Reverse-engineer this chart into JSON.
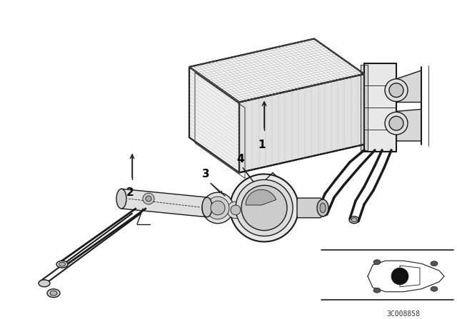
{
  "background_color": "#ffffff",
  "line_color": "#1a1a1a",
  "label_color": "#000000",
  "fig_width": 6.4,
  "fig_height": 4.48,
  "dpi": 100,
  "watermark": "3C008858"
}
